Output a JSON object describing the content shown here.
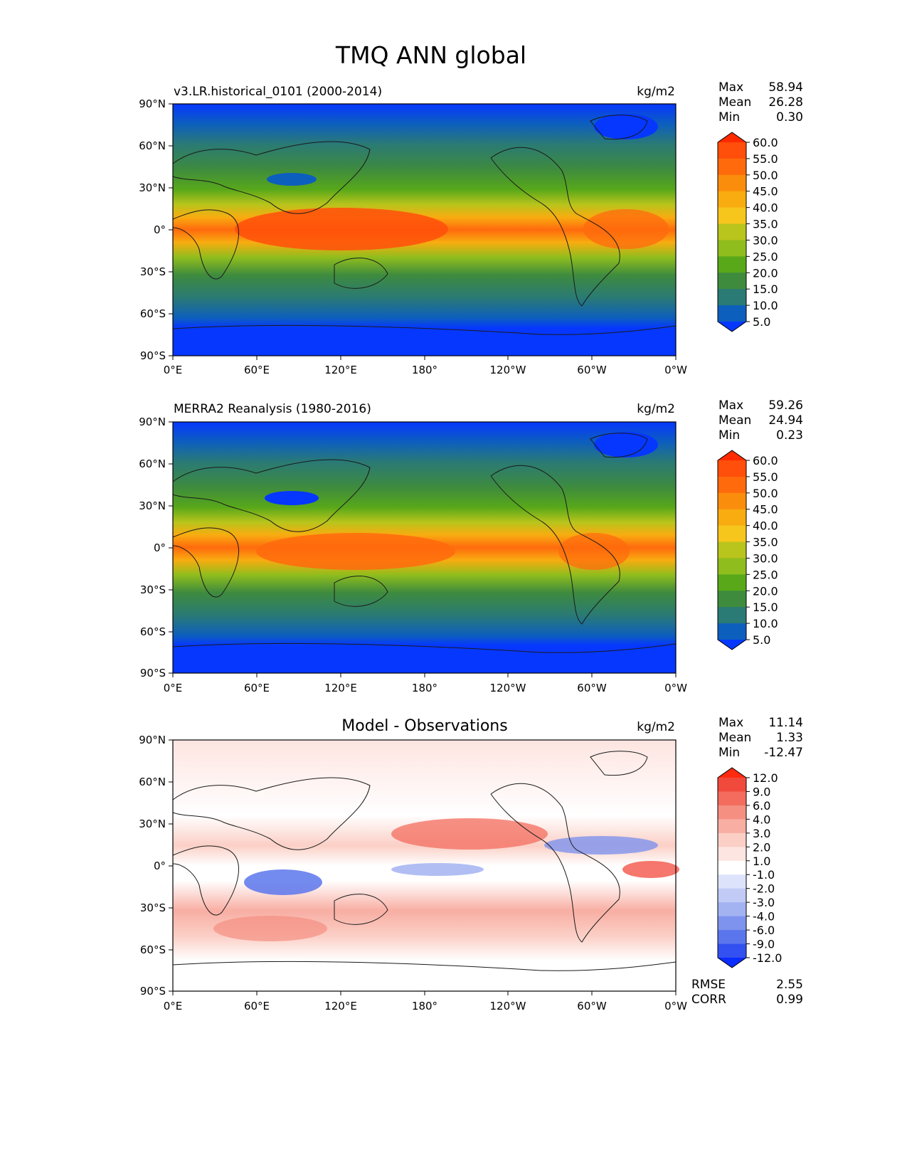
{
  "title": "TMQ ANN global",
  "xticks": [
    "0°E",
    "60°E",
    "120°E",
    "180°",
    "120°W",
    "60°W",
    "0°W"
  ],
  "yticks": [
    "90°N",
    "60°N",
    "30°N",
    "0°",
    "30°S",
    "60°S",
    "90°S"
  ],
  "chart_data": [
    {
      "type": "heatmap",
      "title": "v3.LR.historical_0101 (2000-2014)",
      "units": "kg/m2",
      "stats": {
        "max": "58.94",
        "mean": "26.28",
        "min": "0.30"
      },
      "stat_labels": [
        "Max",
        "Mean",
        "Min"
      ],
      "colorbar_levels": [
        "60.0",
        "55.0",
        "50.0",
        "45.0",
        "40.0",
        "35.0",
        "30.0",
        "25.0",
        "20.0",
        "15.0",
        "10.0",
        "5.0"
      ],
      "colorbar_colors": [
        "#ff2a00",
        "#ff4f0a",
        "#ff6a0d",
        "#fb8d0d",
        "#f8ac10",
        "#f7c61d",
        "#b9c41c",
        "#8fbd1d",
        "#58a81a",
        "#3e8b3e",
        "#2a7a75",
        "#0d5fbd",
        "#0637ff"
      ],
      "xlim": [
        0,
        360
      ],
      "ylim": [
        -90,
        90
      ]
    },
    {
      "type": "heatmap",
      "title": "MERRA2 Reanalysis (1980-2016)",
      "units": "kg/m2",
      "stats": {
        "max": "59.26",
        "mean": "24.94",
        "min": "0.23"
      },
      "stat_labels": [
        "Max",
        "Mean",
        "Min"
      ],
      "colorbar_levels": [
        "60.0",
        "55.0",
        "50.0",
        "45.0",
        "40.0",
        "35.0",
        "30.0",
        "25.0",
        "20.0",
        "15.0",
        "10.0",
        "5.0"
      ],
      "colorbar_colors": [
        "#ff2a00",
        "#ff4f0a",
        "#ff6a0d",
        "#fb8d0d",
        "#f8ac10",
        "#f7c61d",
        "#b9c41c",
        "#8fbd1d",
        "#58a81a",
        "#3e8b3e",
        "#2a7a75",
        "#0d5fbd",
        "#0637ff"
      ],
      "xlim": [
        0,
        360
      ],
      "ylim": [
        -90,
        90
      ]
    },
    {
      "type": "heatmap",
      "title": "Model - Observations",
      "units": "kg/m2",
      "stats": {
        "max": "11.14",
        "mean": "1.33",
        "min": "-12.47"
      },
      "stat_labels": [
        "Max",
        "Mean",
        "Min"
      ],
      "extra_stats": [
        {
          "label": "RMSE",
          "value": "2.55"
        },
        {
          "label": "CORR",
          "value": "0.99"
        }
      ],
      "colorbar_levels": [
        "12.0",
        "9.0",
        "6.0",
        "4.0",
        "3.0",
        "2.0",
        "1.0",
        "-1.0",
        "-2.0",
        "-3.0",
        "-4.0",
        "-6.0",
        "-9.0",
        "-12.0"
      ],
      "colorbar_colors": [
        "#ff2a10",
        "#f14a3c",
        "#f36c5e",
        "#f58f82",
        "#f8aea3",
        "#fbcfc6",
        "#fde5e1",
        "#ffffff",
        "#dde3fb",
        "#c1cbf6",
        "#a3b3f2",
        "#7e93ee",
        "#5b75ec",
        "#3350f0",
        "#0b2cff"
      ],
      "xlim": [
        0,
        360
      ],
      "ylim": [
        -90,
        90
      ]
    }
  ]
}
